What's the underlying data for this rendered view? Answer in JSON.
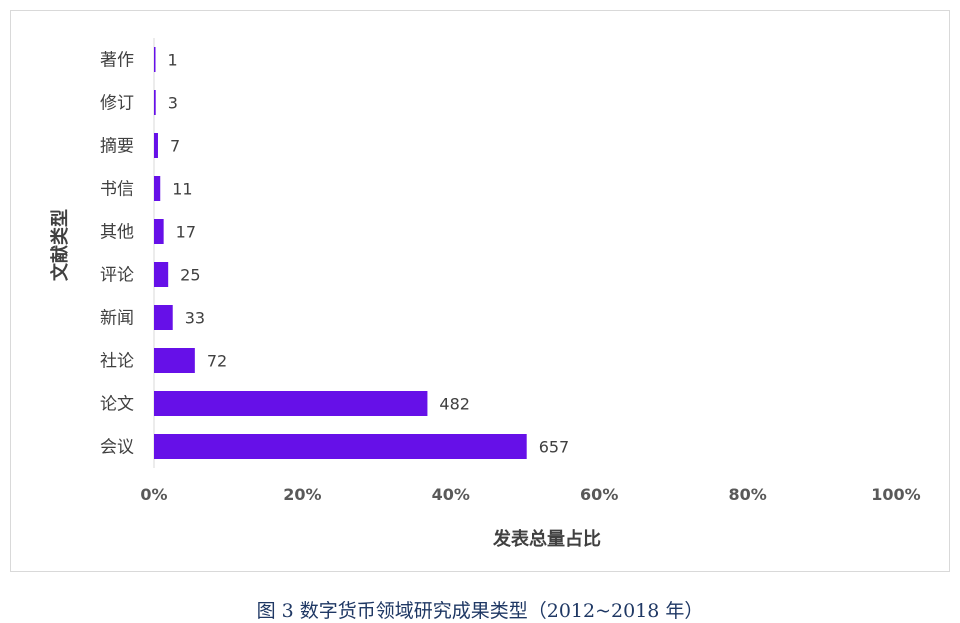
{
  "chart_data": {
    "type": "bar",
    "orientation": "horizontal",
    "categories": [
      "著作",
      "修订",
      "摘要",
      "书信",
      "其他",
      "评论",
      "新闻",
      "社论",
      "论文",
      "会议"
    ],
    "values": [
      1,
      3,
      7,
      11,
      17,
      25,
      33,
      72,
      482,
      657
    ],
    "value_axis": "percent of total",
    "xticks": [
      "0%",
      "20%",
      "40%",
      "60%",
      "80%",
      "100%"
    ],
    "xlim": [
      0,
      1
    ],
    "xlabel": "发表总量占比",
    "ylabel": "文献类型",
    "bar_color": "#6610e8",
    "grid": false,
    "legend": "none"
  },
  "caption": "图 3 数字货币领域研究成果类型（2012~2018 年）"
}
